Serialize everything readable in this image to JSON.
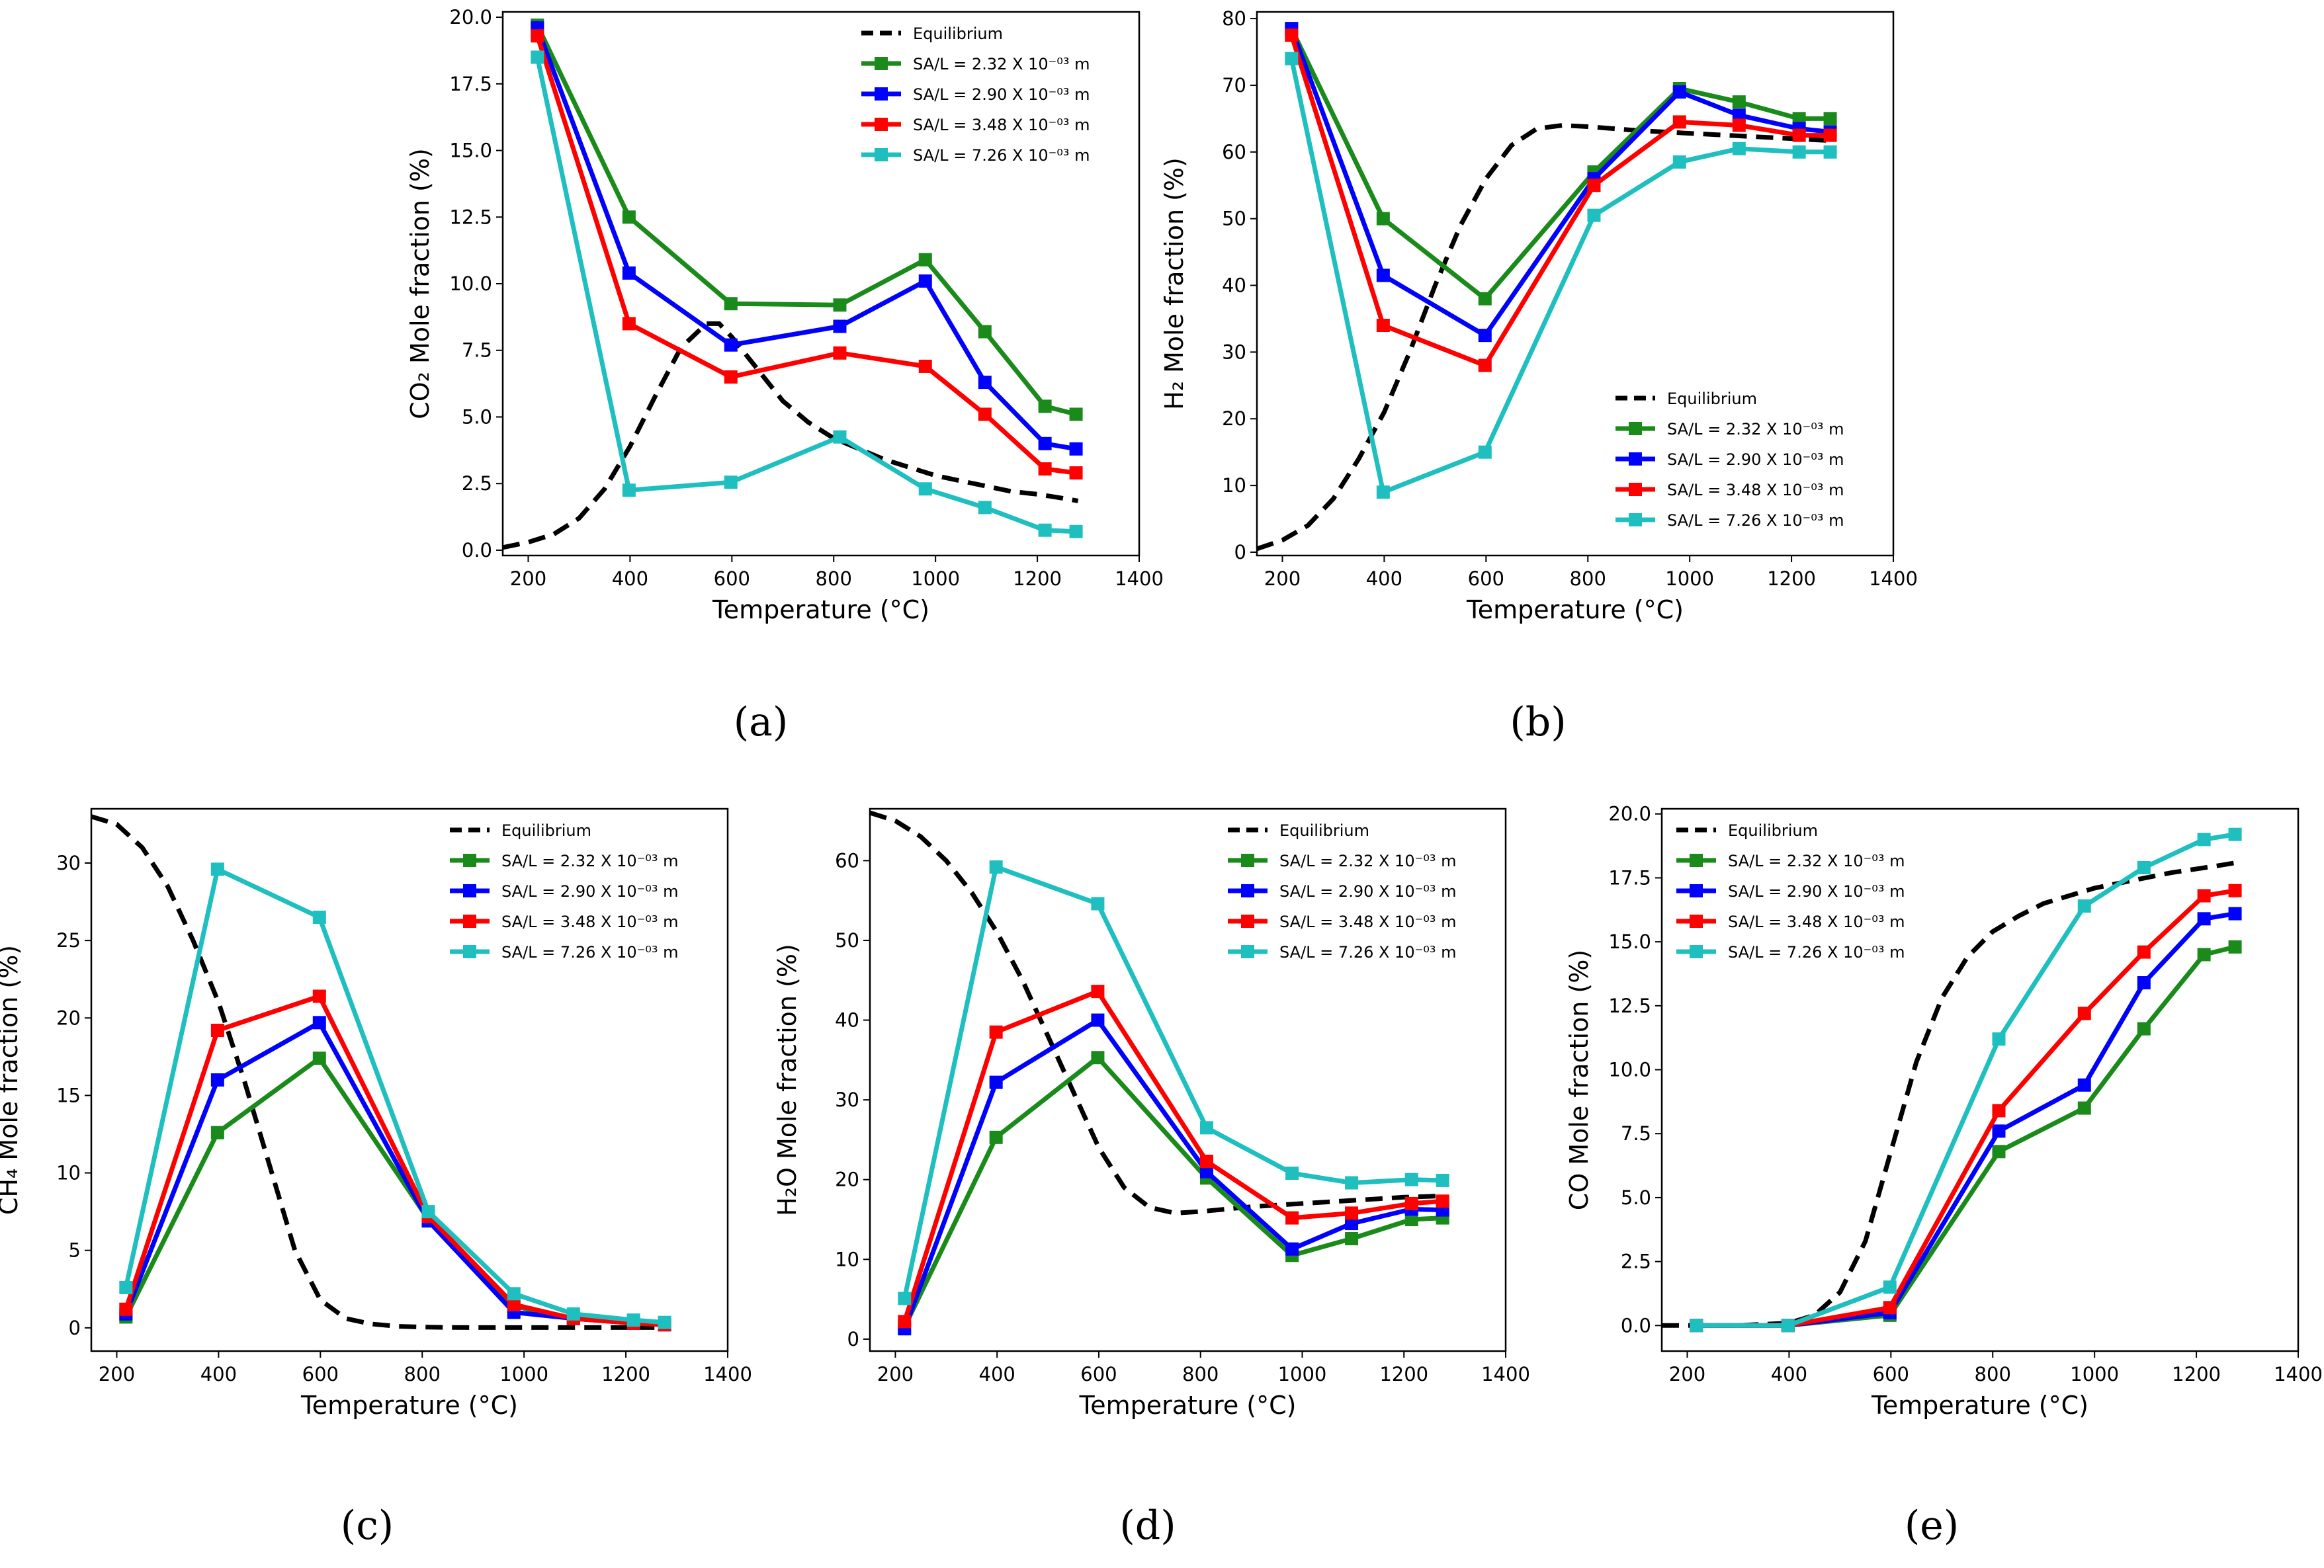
{
  "chart_data": [
    {
      "id": "a",
      "type": "line",
      "subfigure_label": "(a)",
      "ylabel": "CO₂ Mole fraction (%)",
      "xlabel": "Temperature (°C)",
      "xlim": [
        150,
        1400
      ],
      "ylim": [
        -0.2,
        20.2
      ],
      "xticks": [
        200,
        400,
        600,
        800,
        1000,
        1200,
        1400
      ],
      "xtick_labels": [
        "200",
        "400",
        "600",
        "800",
        "1000",
        "1200",
        "1400"
      ],
      "yticks": [
        0,
        2.5,
        5,
        7.5,
        10,
        12.5,
        15,
        17.5,
        20
      ],
      "ytick_labels": [
        "0.0",
        "2.5",
        "5.0",
        "7.5",
        "10.0",
        "12.5",
        "15.0",
        "17.5",
        "20.0"
      ],
      "legend_position": "top-right",
      "equilibrium": {
        "name": "Equilibrium",
        "x": [
          150,
          200,
          250,
          300,
          350,
          400,
          450,
          500,
          550,
          575,
          600,
          650,
          700,
          750,
          800,
          850,
          900,
          950,
          1000,
          1050,
          1100,
          1150,
          1200,
          1250,
          1280
        ],
        "y": [
          0.1,
          0.3,
          0.6,
          1.2,
          2.3,
          3.9,
          5.8,
          7.6,
          8.5,
          8.5,
          8.0,
          6.8,
          5.6,
          4.8,
          4.2,
          3.8,
          3.4,
          3.1,
          2.8,
          2.6,
          2.4,
          2.2,
          2.1,
          1.95,
          1.85
        ]
      },
      "series": [
        {
          "name": "SA/L = 2.32 X 10⁻⁰³ m",
          "color": "#1a8a1a",
          "x": [
            218,
            398,
            598,
            812,
            980,
            1097,
            1215,
            1276
          ],
          "y": [
            19.7,
            12.5,
            9.25,
            9.2,
            10.9,
            8.2,
            5.4,
            5.1
          ]
        },
        {
          "name": "SA/L = 2.90 X 10⁻⁰³ m",
          "color": "#0000ff",
          "x": [
            218,
            398,
            598,
            812,
            980,
            1097,
            1215,
            1276
          ],
          "y": [
            19.6,
            10.4,
            7.7,
            8.4,
            10.1,
            6.3,
            4.0,
            3.8
          ]
        },
        {
          "name": "SA/L = 3.48 X 10⁻⁰³ m",
          "color": "#ff0000",
          "x": [
            218,
            398,
            598,
            812,
            980,
            1097,
            1215,
            1276
          ],
          "y": [
            19.3,
            8.5,
            6.5,
            7.4,
            6.9,
            5.1,
            3.05,
            2.9
          ]
        },
        {
          "name": "SA/L = 7.26 X 10⁻⁰³ m",
          "color": "#1fbfbf",
          "x": [
            218,
            398,
            598,
            812,
            980,
            1097,
            1215,
            1276
          ],
          "y": [
            18.5,
            2.25,
            2.55,
            4.25,
            2.3,
            1.6,
            0.75,
            0.7
          ]
        }
      ]
    },
    {
      "id": "b",
      "type": "line",
      "subfigure_label": "(b)",
      "ylabel": "H₂ Mole fraction (%)",
      "xlabel": "Temperature (°C)",
      "xlim": [
        150,
        1400
      ],
      "ylim": [
        -0.5,
        81
      ],
      "xticks": [
        200,
        400,
        600,
        800,
        1000,
        1200,
        1400
      ],
      "xtick_labels": [
        "200",
        "400",
        "600",
        "800",
        "1000",
        "1200",
        "1400"
      ],
      "yticks": [
        0,
        10,
        20,
        30,
        40,
        50,
        60,
        70,
        80
      ],
      "ytick_labels": [
        "0",
        "10",
        "20",
        "30",
        "40",
        "50",
        "60",
        "70",
        "80"
      ],
      "legend_position": "bottom-right",
      "equilibrium": {
        "name": "Equilibrium",
        "x": [
          150,
          200,
          250,
          300,
          350,
          400,
          450,
          500,
          550,
          600,
          650,
          700,
          750,
          800,
          850,
          900,
          950,
          1000,
          1050,
          1100,
          1150,
          1200,
          1250,
          1280
        ],
        "y": [
          0.5,
          1.8,
          4,
          8,
          14,
          21,
          30,
          40,
          49,
          56,
          61,
          63.5,
          64,
          63.8,
          63.5,
          63.2,
          63,
          62.8,
          62.6,
          62.4,
          62.2,
          62,
          61.8,
          61.7
        ]
      },
      "series": [
        {
          "name": "SA/L = 2.32 X 10⁻⁰³ m",
          "color": "#1a8a1a",
          "x": [
            218,
            398,
            598,
            812,
            980,
            1097,
            1215,
            1276
          ],
          "y": [
            78.5,
            50,
            38,
            57,
            69.5,
            67.5,
            65,
            65
          ]
        },
        {
          "name": "SA/L = 2.90 X 10⁻⁰³ m",
          "color": "#0000ff",
          "x": [
            218,
            398,
            598,
            812,
            980,
            1097,
            1215,
            1276
          ],
          "y": [
            78.5,
            41.5,
            32.5,
            56,
            69,
            65.5,
            63.5,
            63
          ]
        },
        {
          "name": "SA/L = 3.48 X 10⁻⁰³ m",
          "color": "#ff0000",
          "x": [
            218,
            398,
            598,
            812,
            980,
            1097,
            1215,
            1276
          ],
          "y": [
            77.5,
            34,
            28,
            55,
            64.5,
            64,
            62.5,
            62.5
          ]
        },
        {
          "name": "SA/L = 7.26 X 10⁻⁰³ m",
          "color": "#1fbfbf",
          "x": [
            218,
            398,
            598,
            812,
            980,
            1097,
            1215,
            1276
          ],
          "y": [
            74,
            9,
            15,
            50.5,
            58.5,
            60.5,
            60,
            60
          ]
        }
      ]
    },
    {
      "id": "c",
      "type": "line",
      "subfigure_label": "(c)",
      "ylabel": "CH₄ Mole fraction (%)",
      "xlabel": "Temperature (°C)",
      "xlim": [
        150,
        1400
      ],
      "ylim": [
        -1.5,
        33.5
      ],
      "xticks": [
        200,
        400,
        600,
        800,
        1000,
        1200,
        1400
      ],
      "xtick_labels": [
        "200",
        "400",
        "600",
        "800",
        "1000",
        "1200",
        "1400"
      ],
      "yticks": [
        0,
        5,
        10,
        15,
        20,
        25,
        30
      ],
      "ytick_labels": [
        "0",
        "5",
        "10",
        "15",
        "20",
        "25",
        "30"
      ],
      "legend_position": "top-right",
      "equilibrium": {
        "name": "Equilibrium",
        "x": [
          150,
          200,
          250,
          300,
          350,
          400,
          450,
          500,
          550,
          600,
          650,
          700,
          750,
          800,
          850,
          900,
          1000,
          1100,
          1200,
          1280
        ],
        "y": [
          33,
          32.5,
          31,
          28.5,
          25,
          21,
          16,
          10.5,
          5,
          1.8,
          0.6,
          0.25,
          0.1,
          0.05,
          0.03,
          0.02,
          0.02,
          0.02,
          0.02,
          0.02
        ]
      },
      "series": [
        {
          "name": "SA/L = 2.32 X 10⁻⁰³ m",
          "color": "#1a8a1a",
          "x": [
            218,
            398,
            598,
            812,
            980,
            1097,
            1215,
            1276
          ],
          "y": [
            0.7,
            12.6,
            17.4,
            7.0,
            1.4,
            0.6,
            0.3,
            0.2
          ]
        },
        {
          "name": "SA/L = 2.90 X 10⁻⁰³ m",
          "color": "#0000ff",
          "x": [
            218,
            398,
            598,
            812,
            980,
            1097,
            1215,
            1276
          ],
          "y": [
            0.9,
            16,
            19.7,
            6.9,
            1.0,
            0.6,
            0.3,
            0.2
          ]
        },
        {
          "name": "SA/L = 3.48 X 10⁻⁰³ m",
          "color": "#ff0000",
          "x": [
            218,
            398,
            598,
            812,
            980,
            1097,
            1215,
            1276
          ],
          "y": [
            1.2,
            19.2,
            21.4,
            7.2,
            1.5,
            0.6,
            0.3,
            0.2
          ]
        },
        {
          "name": "SA/L = 7.26 X 10⁻⁰³ m",
          "color": "#1fbfbf",
          "x": [
            218,
            398,
            598,
            812,
            980,
            1097,
            1215,
            1276
          ],
          "y": [
            2.6,
            29.6,
            26.5,
            7.5,
            2.2,
            0.9,
            0.5,
            0.35
          ]
        }
      ]
    },
    {
      "id": "d",
      "type": "line",
      "subfigure_label": "(d)",
      "ylabel": "H₂O Mole fraction (%)",
      "xlabel": "Temperature (°C)",
      "xlim": [
        150,
        1400
      ],
      "ylim": [
        -1.5,
        66.5
      ],
      "xticks": [
        200,
        400,
        600,
        800,
        1000,
        1200,
        1400
      ],
      "xtick_labels": [
        "200",
        "400",
        "600",
        "800",
        "1000",
        "1200",
        "1400"
      ],
      "yticks": [
        0,
        10,
        20,
        30,
        40,
        50,
        60
      ],
      "ytick_labels": [
        "0",
        "10",
        "20",
        "30",
        "40",
        "50",
        "60"
      ],
      "legend_position": "top-right",
      "equilibrium": {
        "name": "Equilibrium",
        "x": [
          150,
          200,
          250,
          300,
          350,
          400,
          450,
          500,
          550,
          600,
          650,
          700,
          750,
          800,
          850,
          900,
          950,
          1000,
          1050,
          1100,
          1150,
          1200,
          1250,
          1280
        ],
        "y": [
          66,
          65,
          63,
          60,
          56,
          51,
          45,
          38,
          31,
          24,
          19,
          16.5,
          15.8,
          16,
          16.3,
          16.6,
          16.8,
          17,
          17.2,
          17.4,
          17.6,
          17.8,
          17.9,
          18
        ]
      },
      "series": [
        {
          "name": "SA/L = 2.32 X 10⁻⁰³ m",
          "color": "#1a8a1a",
          "x": [
            218,
            398,
            598,
            812,
            980,
            1097,
            1215,
            1276
          ],
          "y": [
            1.5,
            25.3,
            35.3,
            20.2,
            10.5,
            12.6,
            15,
            15.2
          ]
        },
        {
          "name": "SA/L = 2.90 X 10⁻⁰³ m",
          "color": "#0000ff",
          "x": [
            218,
            398,
            598,
            812,
            980,
            1097,
            1215,
            1276
          ],
          "y": [
            1.3,
            32.2,
            40,
            21,
            11.3,
            14.5,
            16.3,
            16.2
          ]
        },
        {
          "name": "SA/L = 3.48 X 10⁻⁰³ m",
          "color": "#ff0000",
          "x": [
            218,
            398,
            598,
            812,
            980,
            1097,
            1215,
            1276
          ],
          "y": [
            2.2,
            38.5,
            43.6,
            22.3,
            15.2,
            15.8,
            17,
            17.3
          ]
        },
        {
          "name": "SA/L = 7.26 X 10⁻⁰³ m",
          "color": "#1fbfbf",
          "x": [
            218,
            398,
            598,
            812,
            980,
            1097,
            1215,
            1276
          ],
          "y": [
            5.1,
            59.2,
            54.6,
            26.5,
            20.8,
            19.6,
            20,
            19.9
          ]
        }
      ]
    },
    {
      "id": "e",
      "type": "line",
      "subfigure_label": "(e)",
      "ylabel": "CO Mole fraction (%)",
      "xlabel": "Temperature (°C)",
      "xlim": [
        150,
        1400
      ],
      "ylim": [
        -1.0,
        20.2
      ],
      "xticks": [
        200,
        400,
        600,
        800,
        1000,
        1200,
        1400
      ],
      "xtick_labels": [
        "200",
        "400",
        "600",
        "800",
        "1000",
        "1200",
        "1400"
      ],
      "yticks": [
        0,
        2.5,
        5,
        7.5,
        10,
        12.5,
        15,
        17.5,
        20
      ],
      "ytick_labels": [
        "0.0",
        "2.5",
        "5.0",
        "7.5",
        "10.0",
        "12.5",
        "15.0",
        "17.5",
        "20.0"
      ],
      "legend_position": "top-left",
      "equilibrium": {
        "name": "Equilibrium",
        "x": [
          150,
          200,
          300,
          400,
          450,
          500,
          550,
          600,
          650,
          700,
          750,
          800,
          850,
          900,
          950,
          1000,
          1050,
          1100,
          1150,
          1200,
          1250,
          1280
        ],
        "y": [
          0,
          0,
          0,
          0.1,
          0.4,
          1.3,
          3.3,
          6.8,
          10.3,
          12.8,
          14.4,
          15.4,
          16.0,
          16.5,
          16.8,
          17.1,
          17.3,
          17.5,
          17.7,
          17.85,
          18.0,
          18.1
        ]
      },
      "series": [
        {
          "name": "SA/L = 2.32 X 10⁻⁰³ m",
          "color": "#1a8a1a",
          "x": [
            218,
            398,
            598,
            812,
            980,
            1097,
            1215,
            1276
          ],
          "y": [
            0,
            0,
            0.4,
            6.8,
            8.5,
            11.6,
            14.5,
            14.8
          ]
        },
        {
          "name": "SA/L = 2.90 X 10⁻⁰³ m",
          "color": "#0000ff",
          "x": [
            218,
            398,
            598,
            812,
            980,
            1097,
            1215,
            1276
          ],
          "y": [
            0,
            0,
            0.5,
            7.6,
            9.4,
            13.4,
            15.9,
            16.1
          ]
        },
        {
          "name": "SA/L = 3.48 X 10⁻⁰³ m",
          "color": "#ff0000",
          "x": [
            218,
            398,
            598,
            812,
            980,
            1097,
            1215,
            1276
          ],
          "y": [
            0,
            0,
            0.7,
            8.4,
            12.2,
            14.6,
            16.8,
            17.0
          ]
        },
        {
          "name": "SA/L = 7.26 X 10⁻⁰³ m",
          "color": "#1fbfbf",
          "x": [
            218,
            398,
            598,
            812,
            980,
            1097,
            1215,
            1276
          ],
          "y": [
            0,
            0,
            1.5,
            11.2,
            16.4,
            17.9,
            19.0,
            19.2
          ]
        }
      ]
    }
  ]
}
